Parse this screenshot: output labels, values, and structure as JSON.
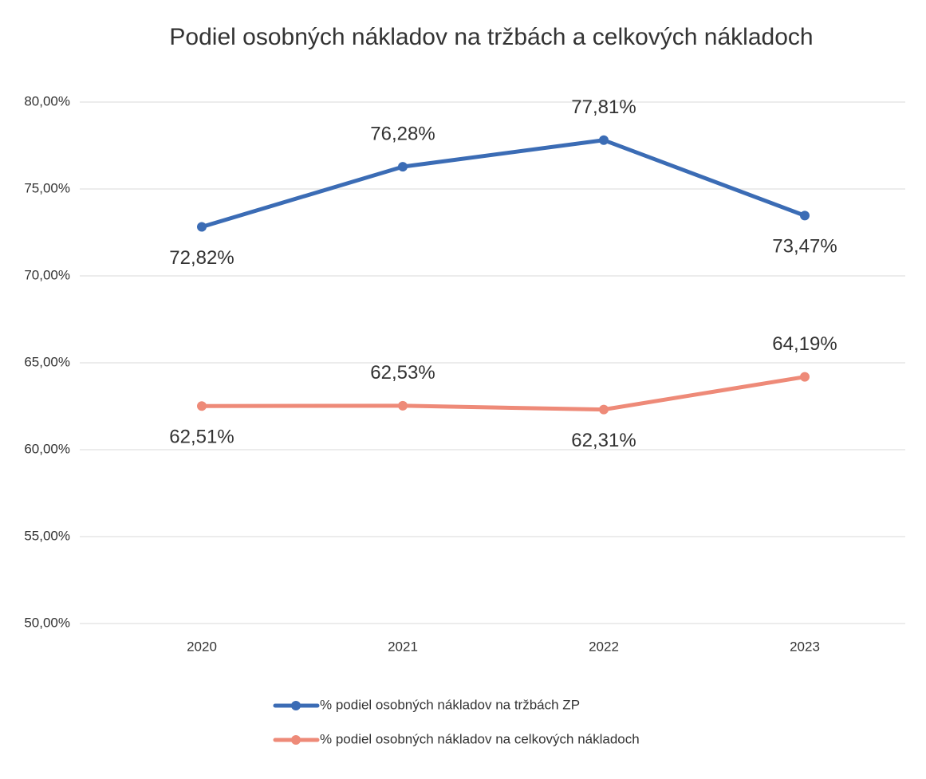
{
  "chart_data": {
    "type": "line",
    "title": "Podiel osobných nákladov na tržbách a celkových nákladoch",
    "categories": [
      "2020",
      "2021",
      "2022",
      "2023"
    ],
    "series": [
      {
        "name": "% podiel osobných nákladov na tržbách ZP",
        "color": "#3b6cb5",
        "values": [
          72.82,
          76.28,
          77.81,
          73.47
        ],
        "value_labels": [
          "72,82%",
          "76,28%",
          "77,81%",
          "73,47%"
        ]
      },
      {
        "name": "% podiel osobných nákladov na celkových nákladoch",
        "color": "#ee8a78",
        "values": [
          62.51,
          62.53,
          62.31,
          64.19
        ],
        "value_labels": [
          "62,51%",
          "62,53%",
          "62,31%",
          "64,19%"
        ]
      }
    ],
    "ylim": [
      50,
      80
    ],
    "yticks": [
      {
        "value": 50,
        "label": "50,00%"
      },
      {
        "value": 55,
        "label": "55,00%"
      },
      {
        "value": 60,
        "label": "60,00%"
      },
      {
        "value": 65,
        "label": "65,00%"
      },
      {
        "value": 70,
        "label": "70,00%"
      },
      {
        "value": 75,
        "label": "75,00%"
      },
      {
        "value": 80,
        "label": "80,00%"
      }
    ],
    "grid": true,
    "legend": "bottom"
  }
}
